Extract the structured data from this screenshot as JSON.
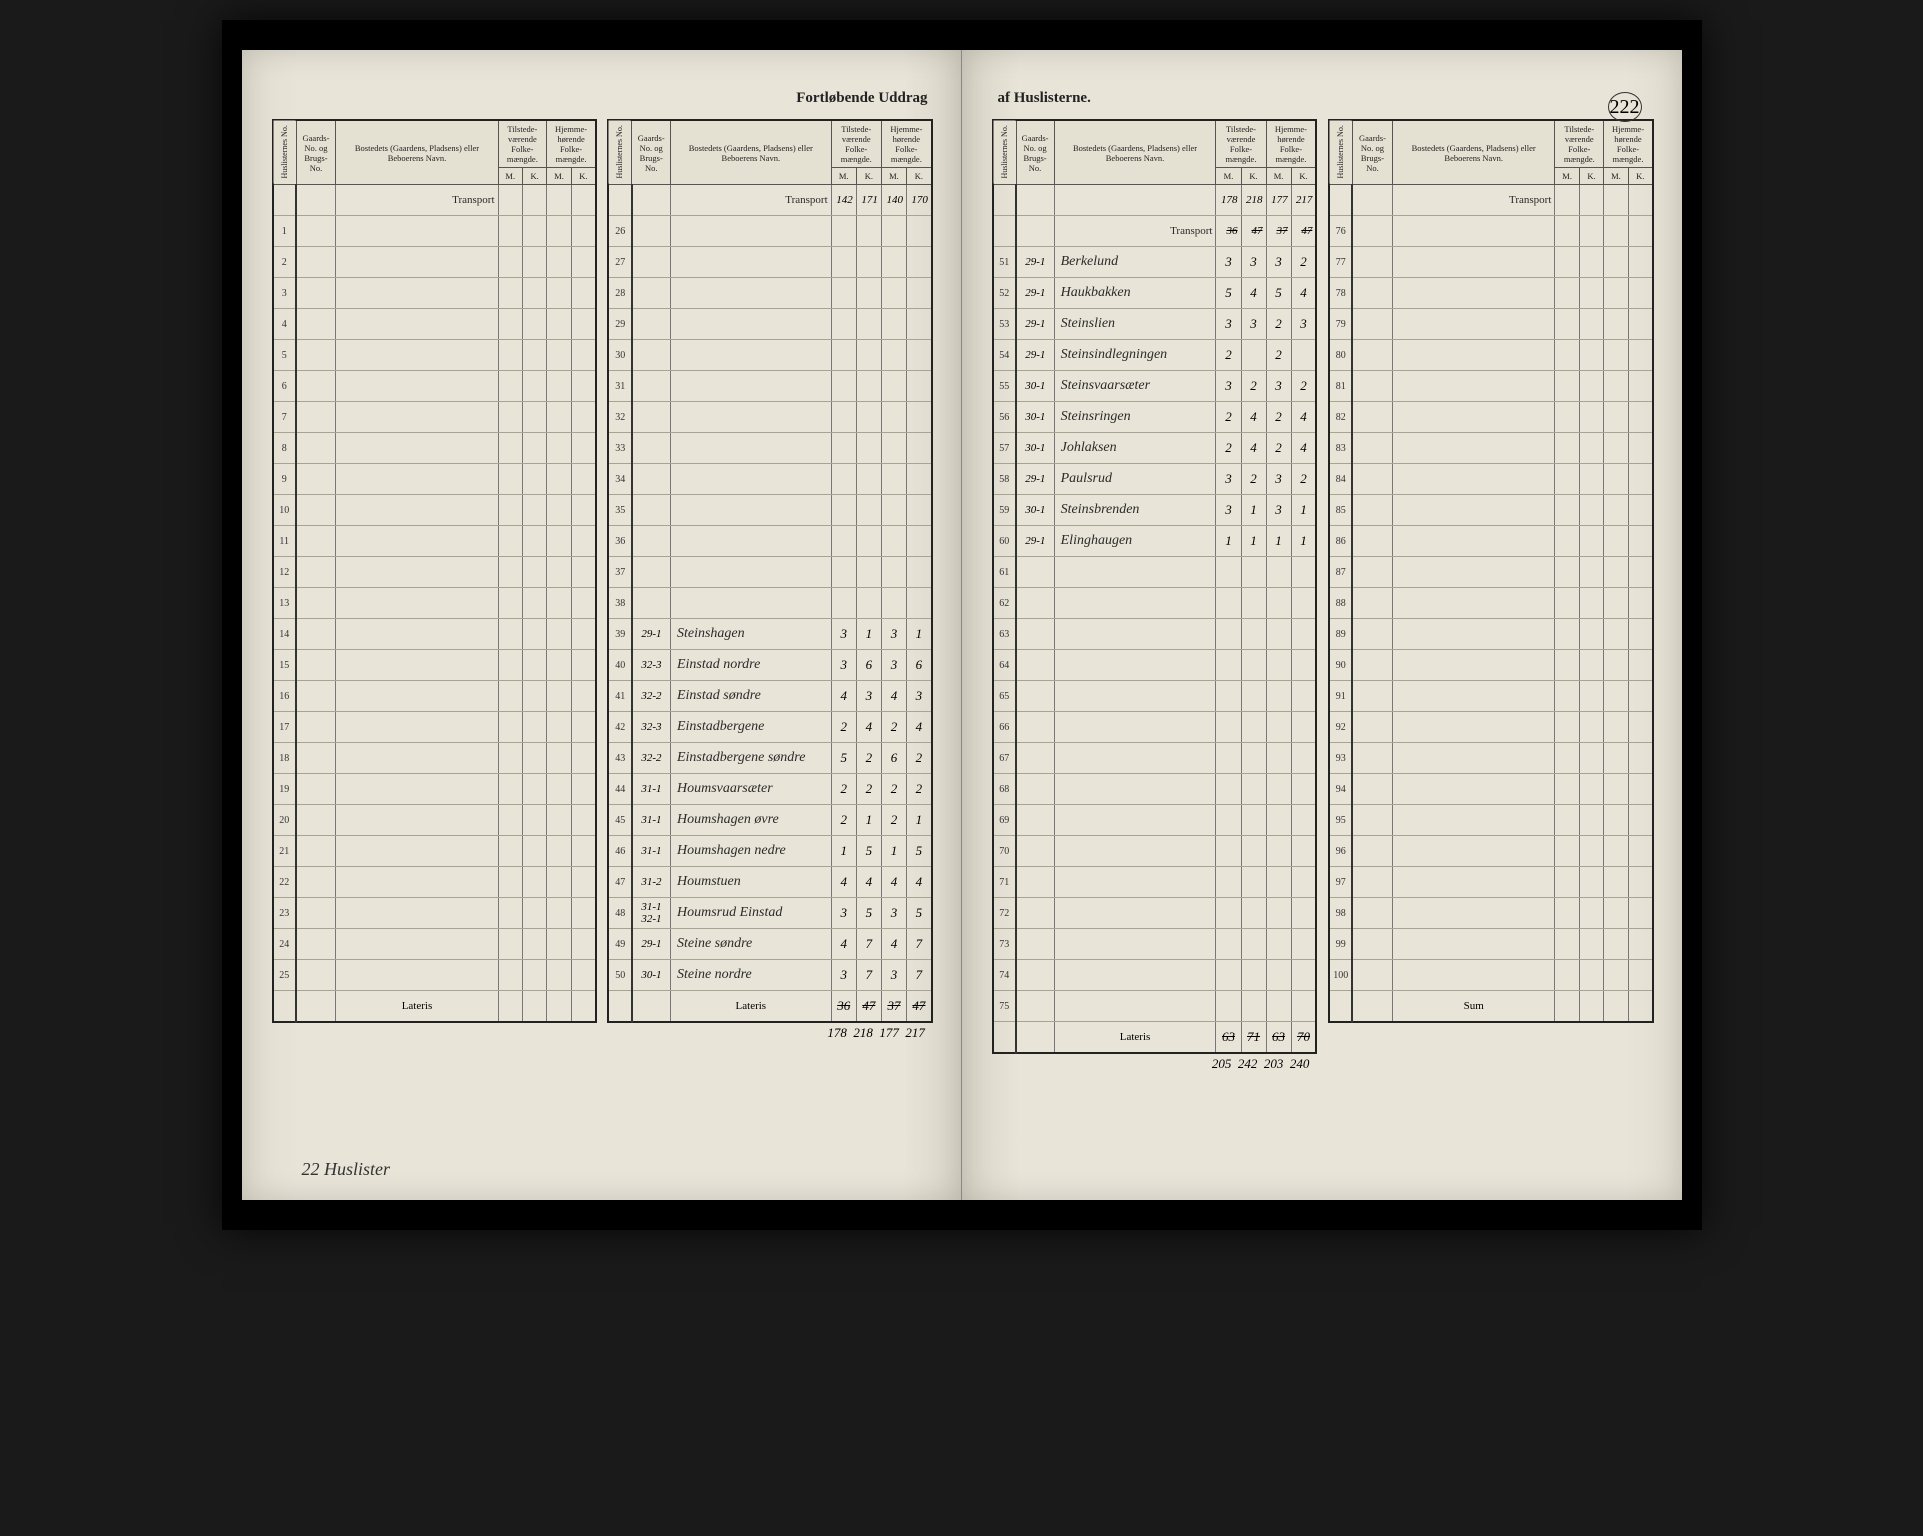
{
  "doc": {
    "title_left": "Fortløbende Uddrag",
    "title_right": "af Huslisterne.",
    "page_number": "222",
    "footer_note": "22 Huslister"
  },
  "headers": {
    "huslist": "Huslisternes No.",
    "gaard": "Gaards-No. og Brugs-No.",
    "bosted": "Bostedets (Gaardens, Pladsens) eller Beboerens Navn.",
    "tilstede": "Tilstede-værende Folke-mængde.",
    "hjemme": "Hjemme-hørende Folke-mængde.",
    "m": "M.",
    "k": "K.",
    "transport": "Transport",
    "lateris": "Lateris",
    "sum": "Sum"
  },
  "panels": {
    "p1": {
      "transport": [
        "",
        "",
        "",
        ""
      ],
      "rows": [
        {
          "n": "1"
        },
        {
          "n": "2"
        },
        {
          "n": "3"
        },
        {
          "n": "4"
        },
        {
          "n": "5"
        },
        {
          "n": "6"
        },
        {
          "n": "7"
        },
        {
          "n": "8"
        },
        {
          "n": "9"
        },
        {
          "n": "10"
        },
        {
          "n": "11"
        },
        {
          "n": "12"
        },
        {
          "n": "13"
        },
        {
          "n": "14"
        },
        {
          "n": "15"
        },
        {
          "n": "16"
        },
        {
          "n": "17"
        },
        {
          "n": "18"
        },
        {
          "n": "19"
        },
        {
          "n": "20"
        },
        {
          "n": "21"
        },
        {
          "n": "22"
        },
        {
          "n": "23"
        },
        {
          "n": "24"
        },
        {
          "n": "25"
        }
      ],
      "lateris": [
        "",
        "",
        "",
        ""
      ]
    },
    "p2": {
      "transport": [
        "142",
        "171",
        "140",
        "170"
      ],
      "rows": [
        {
          "n": "26"
        },
        {
          "n": "27"
        },
        {
          "n": "28"
        },
        {
          "n": "29"
        },
        {
          "n": "30"
        },
        {
          "n": "31"
        },
        {
          "n": "32"
        },
        {
          "n": "33"
        },
        {
          "n": "34"
        },
        {
          "n": "35"
        },
        {
          "n": "36"
        },
        {
          "n": "37"
        },
        {
          "n": "38"
        },
        {
          "n": "39",
          "g": "29-1",
          "name": "Steinshagen",
          "v": [
            "3",
            "1",
            "3",
            "1"
          ]
        },
        {
          "n": "40",
          "g": "32-3",
          "name": "Einstad nordre",
          "v": [
            "3",
            "6",
            "3",
            "6"
          ]
        },
        {
          "n": "41",
          "g": "32-2",
          "name": "Einstad søndre",
          "v": [
            "4",
            "3",
            "4",
            "3"
          ]
        },
        {
          "n": "42",
          "g": "32-3",
          "name": "Einstadbergene",
          "v": [
            "2",
            "4",
            "2",
            "4"
          ]
        },
        {
          "n": "43",
          "g": "32-2",
          "name": "Einstadbergene søndre",
          "v": [
            "5",
            "2",
            "6",
            "2"
          ]
        },
        {
          "n": "44",
          "g": "31-1",
          "name": "Houmsvaarsæter",
          "v": [
            "2",
            "2",
            "2",
            "2"
          ]
        },
        {
          "n": "45",
          "g": "31-1",
          "name": "Houmshagen øvre",
          "v": [
            "2",
            "1",
            "2",
            "1"
          ]
        },
        {
          "n": "46",
          "g": "31-1",
          "name": "Houmshagen nedre",
          "v": [
            "1",
            "5",
            "1",
            "5"
          ]
        },
        {
          "n": "47",
          "g": "31-2",
          "name": "Houmstuen",
          "v": [
            "4",
            "4",
            "4",
            "4"
          ]
        },
        {
          "n": "48",
          "g": "31-1 32-1",
          "name": "Houmsrud Einstad",
          "v": [
            "3",
            "5",
            "3",
            "5"
          ]
        },
        {
          "n": "49",
          "g": "29-1",
          "name": "Steine søndre",
          "v": [
            "4",
            "7",
            "4",
            "7"
          ]
        },
        {
          "n": "50",
          "g": "30-1",
          "name": "Steine nordre",
          "v": [
            "3",
            "7",
            "3",
            "7"
          ]
        }
      ],
      "lateris": [
        "36",
        "47",
        "37",
        "47"
      ],
      "below": [
        "178",
        "218",
        "177",
        "217"
      ]
    },
    "p3": {
      "transport_top": [
        "178",
        "218",
        "177",
        "217"
      ],
      "transport": [
        "36",
        "47",
        "37",
        "47"
      ],
      "rows": [
        {
          "n": "51",
          "g": "29-1",
          "name": "Berkelund",
          "v": [
            "3",
            "3",
            "3",
            "2"
          ]
        },
        {
          "n": "52",
          "g": "29-1",
          "name": "Haukbakken",
          "v": [
            "5",
            "4",
            "5",
            "4"
          ]
        },
        {
          "n": "53",
          "g": "29-1",
          "name": "Steinslien",
          "v": [
            "3",
            "3",
            "2",
            "3"
          ]
        },
        {
          "n": "54",
          "g": "29-1",
          "name": "Steinsindlegningen",
          "v": [
            "2",
            "",
            "2",
            ""
          ]
        },
        {
          "n": "55",
          "g": "30-1",
          "name": "Steinsvaarsæter",
          "v": [
            "3",
            "2",
            "3",
            "2"
          ]
        },
        {
          "n": "56",
          "g": "30-1",
          "name": "Steinsringen",
          "v": [
            "2",
            "4",
            "2",
            "4"
          ]
        },
        {
          "n": "57",
          "g": "30-1",
          "name": "Johlaksen",
          "v": [
            "2",
            "4",
            "2",
            "4"
          ]
        },
        {
          "n": "58",
          "g": "29-1",
          "name": "Paulsrud",
          "v": [
            "3",
            "2",
            "3",
            "2"
          ]
        },
        {
          "n": "59",
          "g": "30-1",
          "name": "Steinsbrenden",
          "v": [
            "3",
            "1",
            "3",
            "1"
          ]
        },
        {
          "n": "60",
          "g": "29-1",
          "name": "Elinghaugen",
          "v": [
            "1",
            "1",
            "1",
            "1"
          ]
        },
        {
          "n": "61"
        },
        {
          "n": "62"
        },
        {
          "n": "63"
        },
        {
          "n": "64"
        },
        {
          "n": "65"
        },
        {
          "n": "66"
        },
        {
          "n": "67"
        },
        {
          "n": "68"
        },
        {
          "n": "69"
        },
        {
          "n": "70"
        },
        {
          "n": "71"
        },
        {
          "n": "72"
        },
        {
          "n": "73"
        },
        {
          "n": "74"
        },
        {
          "n": "75"
        }
      ],
      "lateris": [
        "63",
        "71",
        "63",
        "70"
      ],
      "below": [
        "205",
        "242",
        "203",
        "240"
      ]
    },
    "p4": {
      "transport": [
        "",
        "",
        "",
        ""
      ],
      "rows": [
        {
          "n": "76"
        },
        {
          "n": "77"
        },
        {
          "n": "78"
        },
        {
          "n": "79"
        },
        {
          "n": "80"
        },
        {
          "n": "81"
        },
        {
          "n": "82"
        },
        {
          "n": "83"
        },
        {
          "n": "84"
        },
        {
          "n": "85"
        },
        {
          "n": "86"
        },
        {
          "n": "87"
        },
        {
          "n": "88"
        },
        {
          "n": "89"
        },
        {
          "n": "90"
        },
        {
          "n": "91"
        },
        {
          "n": "92"
        },
        {
          "n": "93"
        },
        {
          "n": "94"
        },
        {
          "n": "95"
        },
        {
          "n": "96"
        },
        {
          "n": "97"
        },
        {
          "n": "98"
        },
        {
          "n": "99"
        },
        {
          "n": "100"
        }
      ],
      "lateris_label": "Sum"
    }
  },
  "style": {
    "page_bg": "#e8e4d8",
    "border": "#222",
    "rule": "#a8a494",
    "ink": "#2a2a2a"
  }
}
